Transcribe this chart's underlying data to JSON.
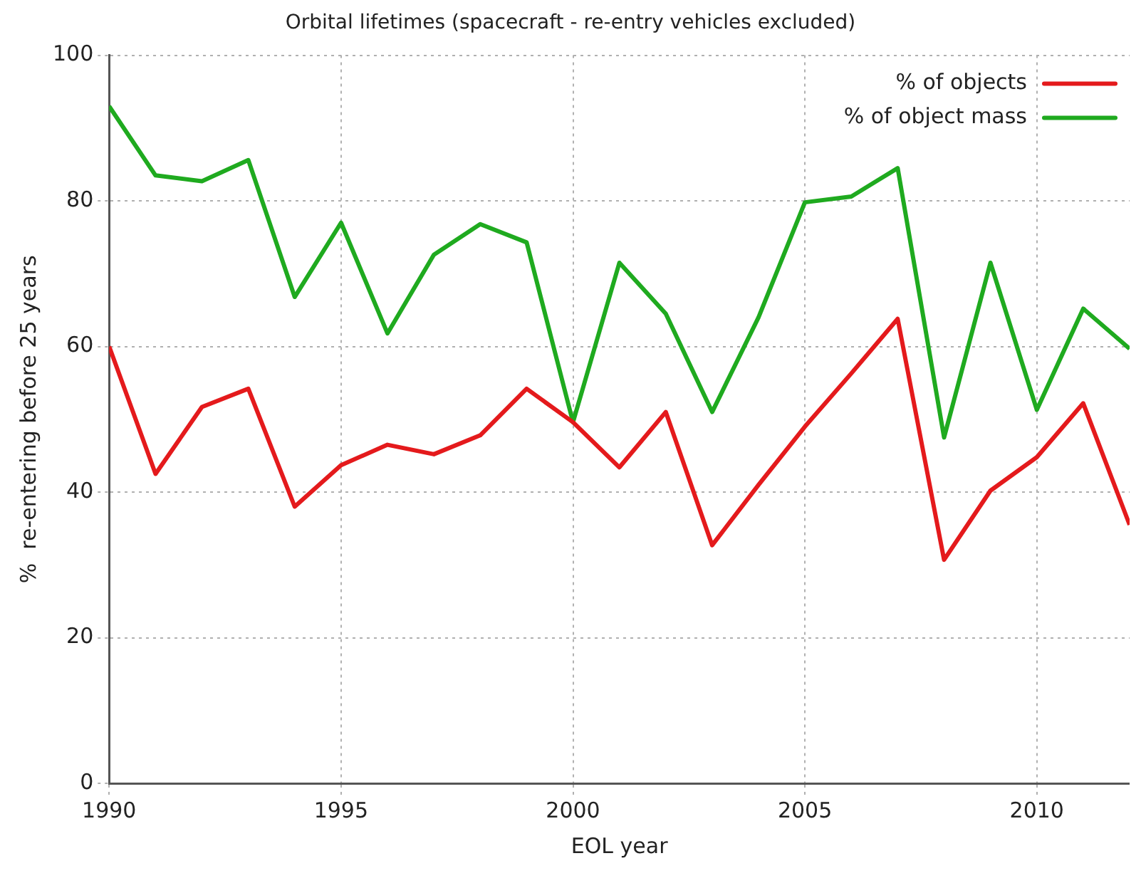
{
  "chart_data": {
    "type": "line",
    "title": "Orbital lifetimes (spacecraft - re-entry vehicles excluded)",
    "xlabel": "EOL year",
    "ylabel": "%  re-entering before 25 years",
    "x": [
      1990,
      1991,
      1992,
      1993,
      1994,
      1995,
      1996,
      1997,
      1998,
      1999,
      2000,
      2001,
      2002,
      2003,
      2004,
      2005,
      2006,
      2007,
      2008,
      2009,
      2010,
      2011,
      2012
    ],
    "series": [
      {
        "name": "% of objects",
        "color": "#e41a1c",
        "values": [
          60,
          42.5,
          51.7,
          54.2,
          38,
          43.7,
          46.5,
          45.2,
          47.8,
          54.2,
          49.6,
          43.4,
          51,
          32.7,
          41,
          49,
          56.3,
          63.8,
          30.7,
          40.2,
          44.8,
          52.2,
          35.5
        ]
      },
      {
        "name": "% of object mass",
        "color": "#1faa1f",
        "values": [
          93,
          83.5,
          82.7,
          85.6,
          66.8,
          77,
          61.8,
          72.6,
          76.8,
          74.3,
          49.6,
          71.5,
          64.5,
          51,
          64,
          79.8,
          80.6,
          84.5,
          47.5,
          71.5,
          51.3,
          65.2,
          59.7
        ]
      }
    ],
    "xlim": [
      1990,
      2012
    ],
    "xticks": [
      1990,
      1995,
      2000,
      2005,
      2010
    ],
    "ylim": [
      0,
      100
    ],
    "yticks": [
      0,
      20,
      40,
      60,
      80,
      100
    ],
    "grid": true,
    "legend": "top right",
    "marker": "none",
    "line_style": "solid"
  }
}
